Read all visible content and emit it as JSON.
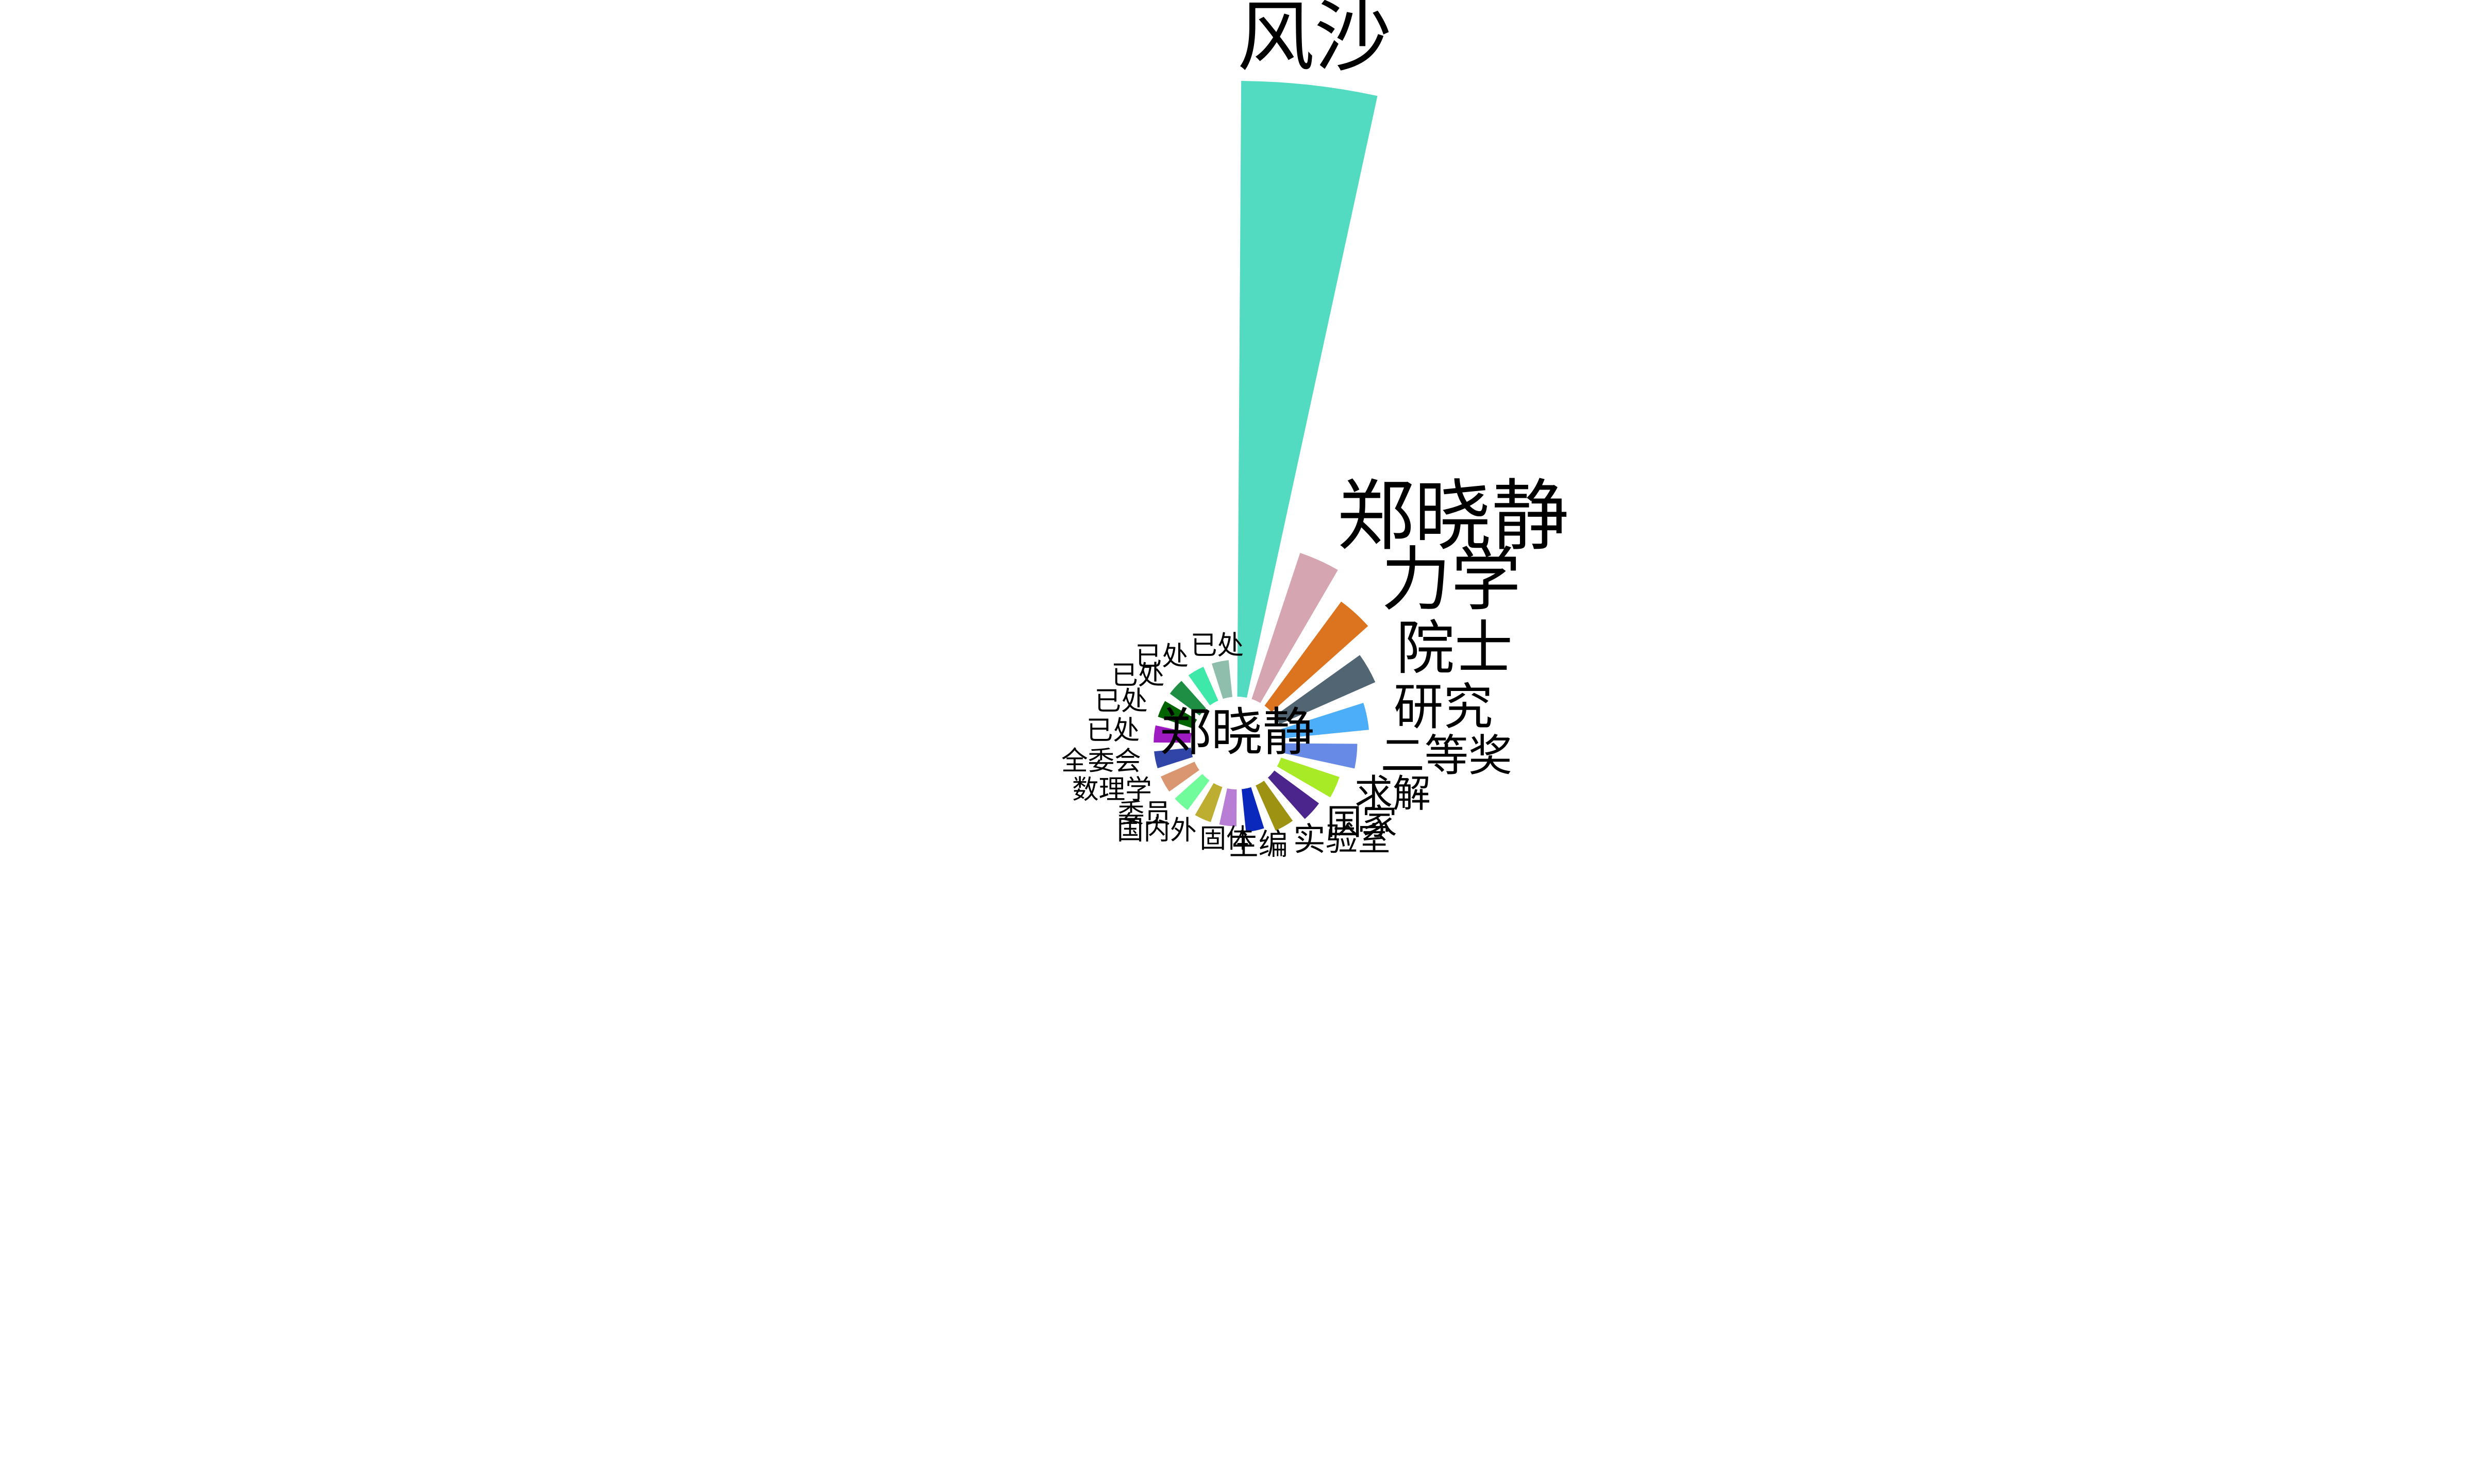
{
  "chart_data": {
    "type": "bar",
    "subtype": "radial",
    "center_label": "郑晓静",
    "categories": [
      "风沙",
      "郑晓静",
      "力学",
      "院士",
      "研究",
      "二等奖",
      "求解",
      "国家",
      "实验室",
      "主编",
      "固体",
      "国内外",
      "委员",
      "数理学",
      "全委会",
      "已处",
      "已处",
      "已处",
      "已处",
      "已处"
    ],
    "values": [
      100,
      25,
      21,
      17,
      14,
      12,
      10,
      9,
      8,
      7,
      6,
      6,
      6,
      6,
      6,
      6,
      6,
      6,
      6,
      6
    ],
    "colors": [
      "#53dbc1",
      "#d6a5b2",
      "#dc731e",
      "#526572",
      "#4caef8",
      "#678ae6",
      "#a7ea25",
      "#4c258c",
      "#9d9212",
      "#0a28bb",
      "#b87dd4",
      "#bdad30",
      "#71fc9b",
      "#da9670",
      "#3145a8",
      "#9e1bc1",
      "#006400",
      "#1e8e45",
      "#3ee8a8",
      "#90beac"
    ],
    "grid": false,
    "legend": "none"
  }
}
